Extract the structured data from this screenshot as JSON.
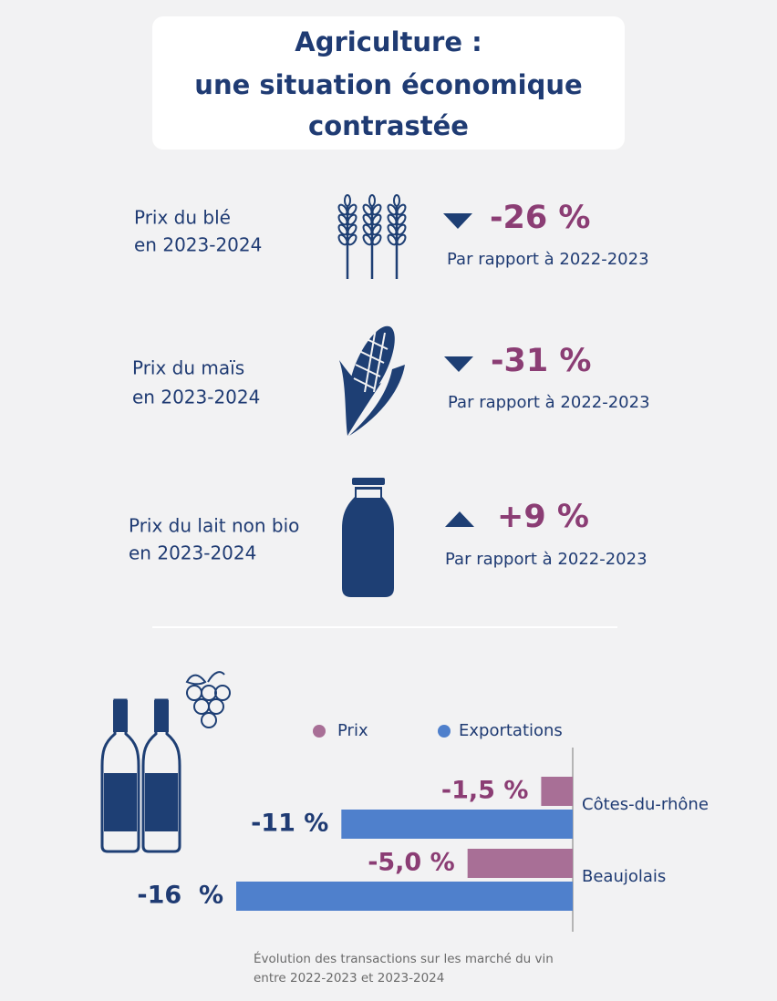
{
  "header": {
    "title": [
      "Agriculture :",
      "une situation économique",
      "contrastée"
    ]
  },
  "stats": [
    {
      "label": [
        "Prix du blé",
        "en 2023-2024"
      ],
      "value": "-26 %",
      "trend": "down",
      "note": "Par rapport à 2022-2023"
    },
    {
      "label": [
        "Prix du maïs",
        "en 2023-2024"
      ],
      "value": "-31 %",
      "trend": "down",
      "note": "Par rapport à 2022-2023"
    },
    {
      "label": [
        "Prix du lait non bio",
        "en 2023-2024"
      ],
      "value": "+9 %",
      "trend": "up",
      "note": "Par rapport à 2022-2023"
    }
  ],
  "chart_data": {
    "type": "bar",
    "orientation": "horizontal",
    "categories": [
      "Côtes-du-rhône",
      "Beaujolais"
    ],
    "series": [
      {
        "name": "Prix",
        "color": "#a86f96",
        "label_color": "#8b3d74",
        "values": [
          -1.5,
          -5.0
        ],
        "value_labels": [
          "-1,5 %",
          "-5,0 %"
        ]
      },
      {
        "name": "Exportations",
        "color": "#4f80cc",
        "label_color": "#1f3b73",
        "values": [
          -11,
          -16
        ],
        "value_labels": [
          "-11 %",
          "-16  %"
        ]
      }
    ],
    "xlim": [
      -16,
      0
    ]
  },
  "caption": [
    "Évolution des transactions sur les marché du vin",
    "entre 2022-2023 et 2023-2024"
  ]
}
